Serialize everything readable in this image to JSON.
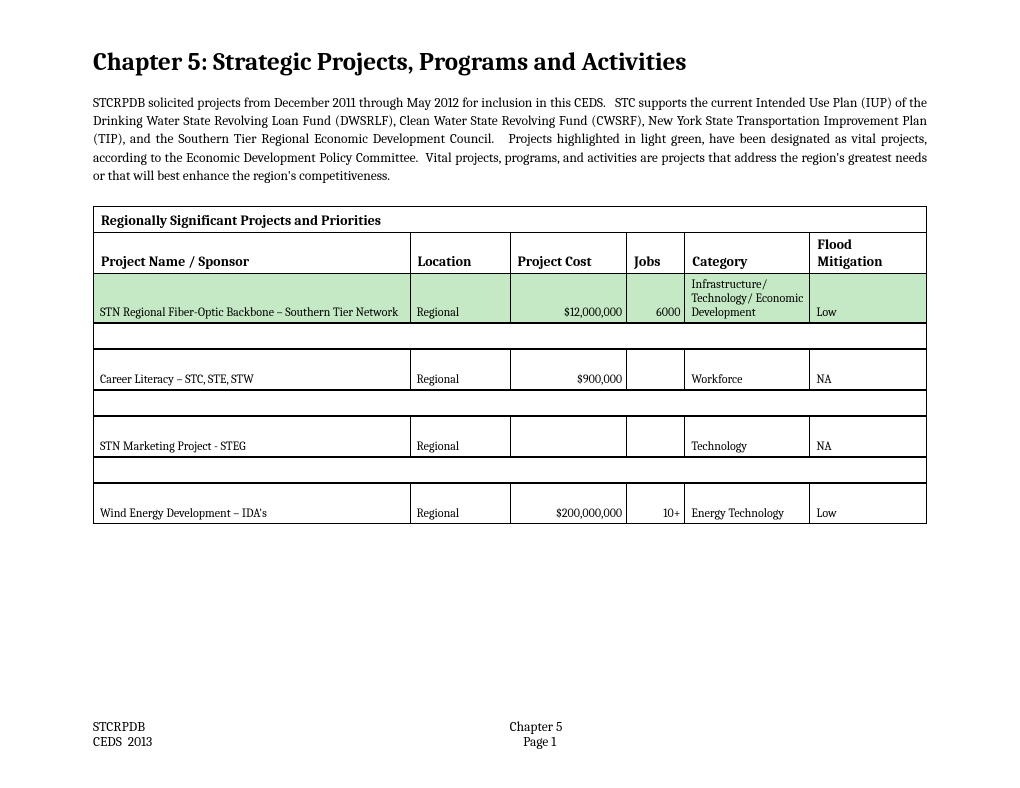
{
  "title": "Chapter 5: Strategic Projects, Programs and Activities",
  "intro": "STCRPDB solicited projects from December 2011 through May 2012 for inclusion in this CEDS.   STC supports the current Intended Use Plan (IUP) of the Drinking Water State Revolving Loan Fund (DWSRLF), Clean Water State Revolving Fund (CWSRF), New York State Transportation Improvement Plan (TIP), and the Southern Tier Regional Economic Development Council.   Projects highlighted in light green, have been designated as vital projects, according to the Economic Development Policy Committee.  Vital projects, programs, and activities are projects that address the region's greatest needs or that will best enhance the region's competitiveness.",
  "section_header": "Regionally Significant Projects and Priorities",
  "columns": {
    "name": "Project Name / Sponsor",
    "location": "Location",
    "cost": "Project Cost",
    "jobs": "Jobs",
    "category": "Category",
    "flood": "Flood Mitigation"
  },
  "rows": [
    {
      "name": "STN Regional Fiber-Optic Backbone – Southern Tier Network",
      "location": "Regional",
      "cost": "$12,000,000",
      "jobs": "6000",
      "category": "Infrastructure/ Technology/ Economic Development",
      "flood": "Low",
      "highlight": true
    },
    {
      "name": "Career Literacy – STC, STE, STW",
      "location": "Regional",
      "cost": "$900,000",
      "jobs": "",
      "category": "Workforce",
      "flood": "NA",
      "highlight": false
    },
    {
      "name": "STN Marketing Project - STEG",
      "location": "Regional",
      "cost": "",
      "jobs": "",
      "category": "Technology",
      "flood": "NA",
      "highlight": false
    },
    {
      "name": "Wind Energy Development – IDA's",
      "location": "Regional",
      "cost": "$200,000,000",
      "jobs": "10+",
      "category": "Energy Technology",
      "flood": "Low",
      "highlight": false
    }
  ],
  "footer": {
    "org": "STCRPDB",
    "doc": "CEDS  2013",
    "chapter": "Chapter 5",
    "page": "Page 1"
  },
  "colors": {
    "highlight": "#c5e9c5",
    "background": "#ffffff",
    "text": "#000000",
    "border": "#000000"
  }
}
